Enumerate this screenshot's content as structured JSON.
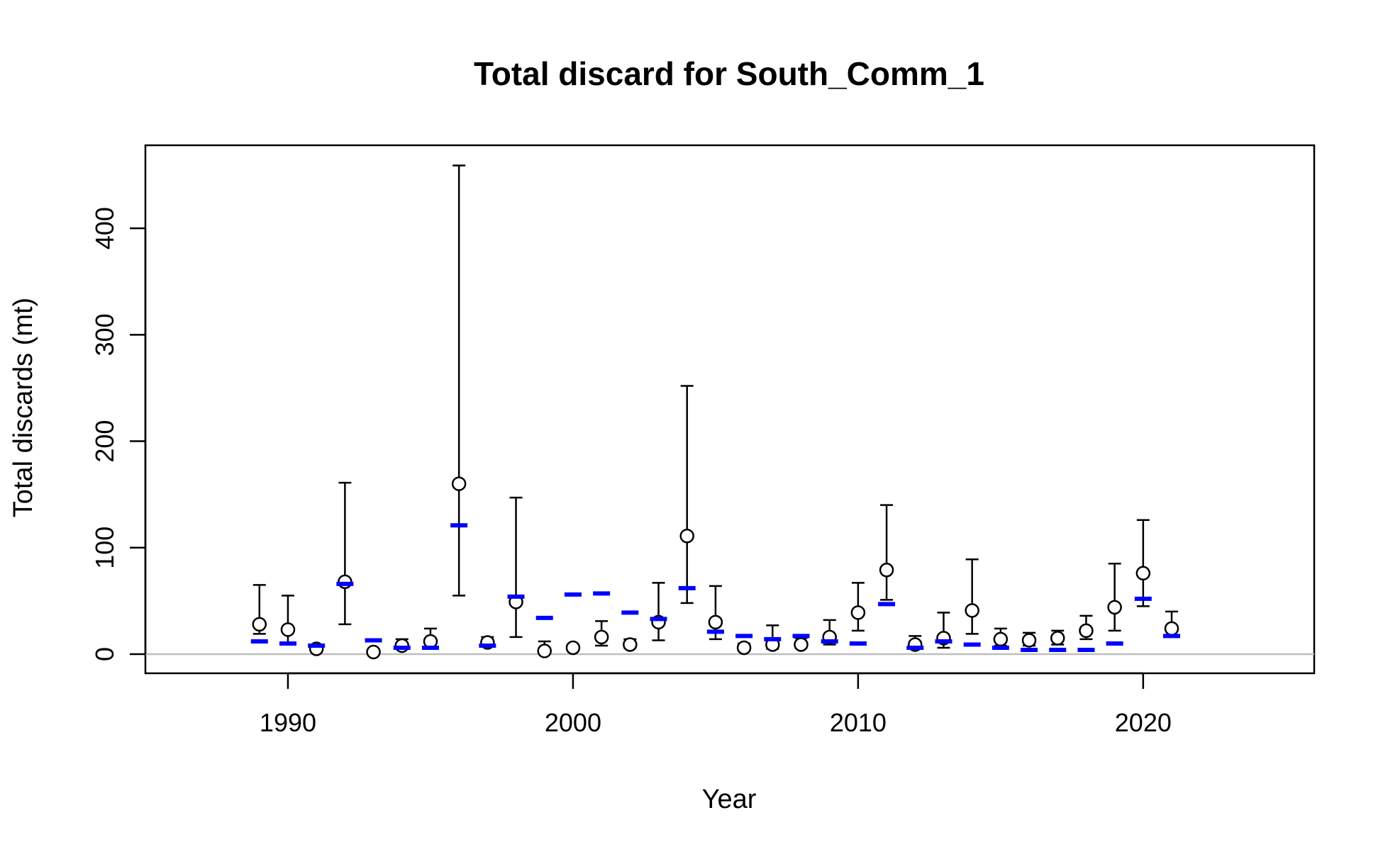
{
  "chart_data": {
    "type": "scatter",
    "title": "Total discard for South_Comm_1",
    "xlabel": "Year",
    "ylabel": "Total discards (mt)",
    "xlim": [
      1985,
      2026
    ],
    "ylim": [
      -18,
      478
    ],
    "x_ticks": [
      1990,
      2000,
      2010,
      2020
    ],
    "y_ticks": [
      0,
      100,
      200,
      300,
      400
    ],
    "grid": false,
    "reference_line": 0,
    "colors": {
      "observed": "#000000",
      "expected": "#0000ff",
      "reference": "#bebebe"
    },
    "series": [
      {
        "kind": "observed-with-interval",
        "x": [
          1989,
          1990,
          1991,
          1992,
          1993,
          1994,
          1995,
          1996,
          1997,
          1998,
          1999,
          2000,
          2001,
          2002,
          2003,
          2004,
          2005,
          2006,
          2007,
          2008,
          2009,
          2010,
          2011,
          2012,
          2013,
          2014,
          2015,
          2016,
          2017,
          2018,
          2019,
          2020,
          2021
        ],
        "y": [
          28,
          23,
          5,
          68,
          2,
          8,
          12,
          160,
          11,
          49,
          3,
          6,
          16,
          9,
          30,
          111,
          30,
          6,
          9,
          9,
          16,
          39,
          79,
          9,
          15,
          41,
          14,
          13,
          15,
          22,
          44,
          76,
          24
        ],
        "lower": [
          19,
          11,
          4,
          28,
          1,
          5,
          7,
          55,
          8,
          16,
          2,
          4,
          8,
          6,
          13,
          48,
          14,
          4,
          5,
          6,
          9,
          22,
          51,
          6,
          6,
          19,
          8,
          8,
          9,
          14,
          22,
          45,
          16
        ],
        "upper": [
          65,
          55,
          8,
          161,
          4,
          14,
          24,
          459,
          16,
          147,
          12,
          9,
          31,
          14,
          67,
          252,
          64,
          10,
          27,
          15,
          32,
          67,
          140,
          17,
          39,
          89,
          24,
          20,
          22,
          36,
          85,
          126,
          40
        ]
      },
      {
        "kind": "expected",
        "x": [
          1989,
          1990,
          1991,
          1992,
          1993,
          1994,
          1995,
          1996,
          1997,
          1998,
          1999,
          2000,
          2001,
          2002,
          2003,
          2004,
          2005,
          2006,
          2007,
          2008,
          2009,
          2010,
          2011,
          2012,
          2013,
          2014,
          2015,
          2016,
          2017,
          2018,
          2019,
          2020,
          2021
        ],
        "y": [
          12,
          10,
          8,
          66,
          13,
          6,
          6,
          121,
          8,
          54,
          34,
          56,
          57,
          39,
          33,
          62,
          21,
          17,
          14,
          17,
          12,
          10,
          47,
          6,
          12,
          9,
          6,
          4,
          4,
          4,
          10,
          52,
          17
        ]
      }
    ]
  }
}
